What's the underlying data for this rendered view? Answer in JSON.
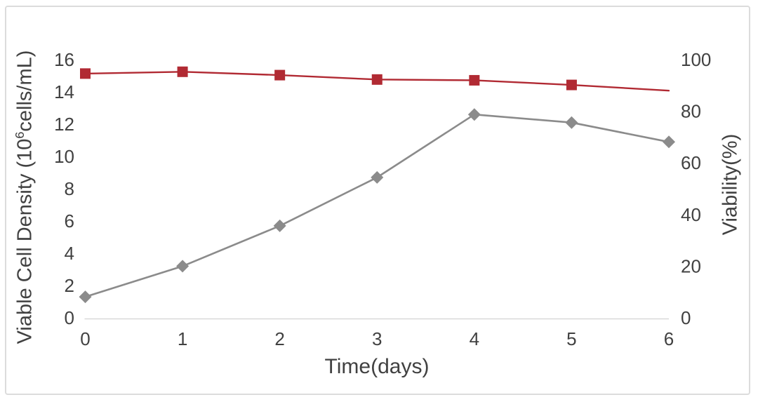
{
  "chart_data": {
    "type": "line",
    "title": "",
    "legend": "none",
    "grid": false,
    "axis_line_color": "#d9d9d9",
    "text_color": "#414141",
    "x_axis": {
      "label": "Time(days)",
      "ticks": [
        0,
        1,
        2,
        3,
        4,
        5,
        6
      ],
      "range": [
        0,
        6
      ]
    },
    "y_axis_left": {
      "label_full": "Viable Cell Density (10⁶cells/mL)",
      "label_pre": "Viable Cell Density (10",
      "label_sup": "6",
      "label_post": "cells/mL)",
      "ticks": [
        0,
        2,
        4,
        6,
        8,
        10,
        12,
        14,
        16
      ],
      "range": [
        0,
        16
      ]
    },
    "y_axis_right": {
      "label": "Viability(%)",
      "ticks": [
        0,
        20,
        40,
        60,
        80,
        100
      ],
      "range": [
        0,
        100
      ]
    },
    "x": [
      0,
      1,
      2,
      3,
      4,
      5,
      6
    ],
    "series": [
      {
        "name": "Viable Cell Density",
        "axis": "left",
        "color": "#8b8b8b",
        "marker": "diamond",
        "marker_size": 9,
        "line_width": 2.6,
        "marker_on_last_point": true,
        "values": [
          1.3,
          3.2,
          5.7,
          8.7,
          12.6,
          12.1,
          10.9
        ]
      },
      {
        "name": "Viability",
        "axis": "right",
        "color": "#b12a33",
        "marker": "square",
        "marker_size": 7.5,
        "line_width": 2.4,
        "marker_on_last_point": false,
        "values": [
          94.6,
          95.3,
          94.0,
          92.3,
          92.0,
          90.2,
          88.0
        ]
      }
    ]
  },
  "frame": {
    "border_color": "#dcdcdc"
  }
}
